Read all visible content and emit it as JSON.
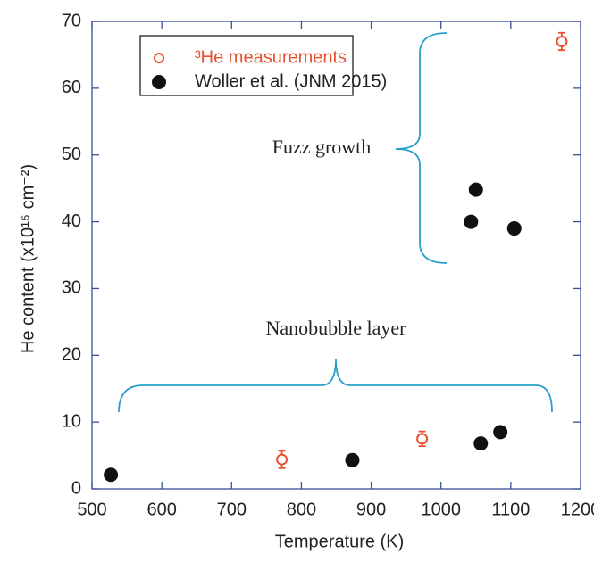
{
  "chart_data": {
    "type": "scatter",
    "xlabel": "Temperature (K)",
    "ylabel": "He content (x10¹⁵ cm⁻²)",
    "xlim": [
      500,
      1200
    ],
    "xticks": [
      500,
      600,
      700,
      800,
      900,
      1000,
      1100,
      1200
    ],
    "ylim": [
      0,
      70
    ],
    "yticks": [
      0,
      10,
      20,
      30,
      40,
      50,
      60,
      70
    ],
    "legend": "upper left",
    "annotations": [
      "Fuzz growth",
      "Nanobubble layer"
    ],
    "series": [
      {
        "name": "³He measurements",
        "color": "#e8502e",
        "marker": "open",
        "x": [
          772,
          973,
          1173
        ],
        "values": [
          4.4,
          7.5,
          67
        ],
        "errors": [
          1.3,
          1.1,
          1.3
        ]
      },
      {
        "name": "Woller et al. (JNM 2015)",
        "color": "#111111",
        "marker": "filled",
        "x": [
          527,
          873,
          1043,
          1050,
          1057,
          1085,
          1105
        ],
        "values": [
          2.1,
          4.3,
          40,
          44.8,
          6.8,
          8.5,
          39
        ]
      }
    ]
  }
}
